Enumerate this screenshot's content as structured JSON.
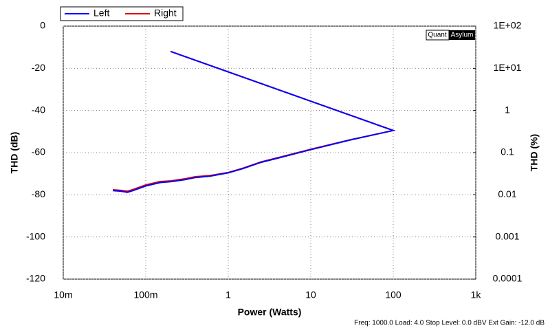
{
  "chart_data": {
    "type": "line",
    "x_label": "Power (Watts)",
    "y_label": "THD (dB)",
    "y2_label": "THD (%)",
    "logo": [
      "Quant",
      "Asylum"
    ],
    "footer": "Freq: 1000.0 Load: 4.0 Stop Level: 0.0 dBV  Ext Gain: -12.0 dB",
    "x": [
      0.04,
      0.05,
      0.06,
      0.07,
      0.1,
      0.15,
      0.2,
      0.3,
      0.4,
      0.6,
      1,
      1.5,
      2.5,
      4,
      10,
      30,
      100,
      0.2
    ],
    "series": [
      {
        "name": "Left",
        "color": "#0000ff",
        "values": [
          -78,
          -78.3,
          -78.8,
          -78,
          -75.8,
          -74.2,
          -73.8,
          -72.8,
          -71.8,
          -71.2,
          -69.6,
          -67.6,
          -64.6,
          -62.6,
          -58.6,
          -54,
          -49.5,
          -12
        ]
      },
      {
        "name": "Right",
        "color": "#e00000",
        "values": [
          -77.6,
          -77.9,
          -78.3,
          -77.5,
          -75.3,
          -73.7,
          -73.4,
          -72.4,
          -71.4,
          -70.9,
          -69.4,
          -67.4,
          -64.4,
          -62.4,
          -58.4,
          -53.9,
          -49.5,
          -12
        ]
      }
    ],
    "xlim": [
      0.01,
      1000
    ],
    "xticks": [
      {
        "value": 0.01,
        "label": "10m"
      },
      {
        "value": 0.1,
        "label": "100m"
      },
      1,
      10,
      100,
      {
        "value": 1000,
        "label": "1k"
      }
    ],
    "xscale": "log",
    "ylim": [
      -120,
      0
    ],
    "yticks": [
      0,
      -20,
      -40,
      -60,
      -80,
      -100,
      -120
    ],
    "y2lim": [
      0.0001,
      100
    ],
    "y2ticks": [
      {
        "value": 100,
        "label": "1E+02"
      },
      {
        "value": 10,
        "label": "1E+01"
      },
      1,
      0.1,
      0.01,
      0.001,
      0.0001
    ],
    "y2scale": "log",
    "grid": true,
    "legend": "top-left"
  }
}
